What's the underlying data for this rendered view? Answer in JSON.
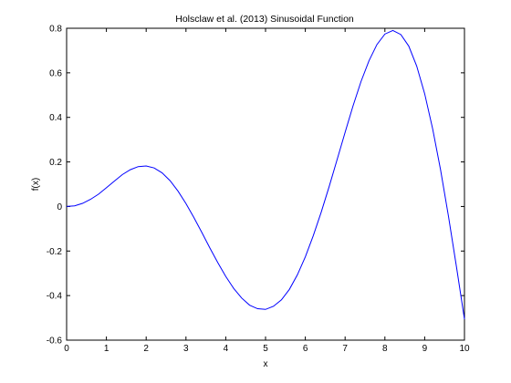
{
  "chart_data": {
    "type": "line",
    "title": "Holsclaw et al. (2013) Sinusoidal Function",
    "xlabel": "x",
    "ylabel": "f(x)",
    "xlim": [
      0,
      10
    ],
    "ylim": [
      -0.6,
      0.8
    ],
    "x_ticks": [
      "0",
      "1",
      "2",
      "3",
      "4",
      "5",
      "6",
      "7",
      "8",
      "9",
      "10"
    ],
    "y_ticks": [
      "-0.6",
      "-0.4",
      "-0.2",
      "0",
      "0.2",
      "0.4",
      "0.6",
      "0.8"
    ],
    "grid": false,
    "series": [
      {
        "color": "#0000ff",
        "x": [
          0,
          0.2,
          0.4,
          0.6,
          0.8,
          1.0,
          1.2,
          1.4,
          1.6,
          1.8,
          2.0,
          2.2,
          2.4,
          2.6,
          2.8,
          3.0,
          3.2,
          3.4,
          3.6,
          3.8,
          4.0,
          4.2,
          4.4,
          4.6,
          4.8,
          5.0,
          5.2,
          5.4,
          5.6,
          5.8,
          6.0,
          6.2,
          6.4,
          6.6,
          6.8,
          7.0,
          7.2,
          7.4,
          7.6,
          7.8,
          8.0,
          8.2,
          8.4,
          8.6,
          8.8,
          9.0,
          9.2,
          9.4,
          9.6,
          9.8,
          10.0
        ],
        "y": [
          0,
          0.003,
          0.014,
          0.032,
          0.055,
          0.084,
          0.114,
          0.143,
          0.165,
          0.179,
          0.182,
          0.173,
          0.151,
          0.116,
          0.069,
          0.013,
          -0.05,
          -0.117,
          -0.186,
          -0.252,
          -0.314,
          -0.368,
          -0.411,
          -0.443,
          -0.459,
          -0.462,
          -0.448,
          -0.419,
          -0.372,
          -0.307,
          -0.226,
          -0.131,
          -0.025,
          0.09,
          0.211,
          0.333,
          0.452,
          0.561,
          0.654,
          0.727,
          0.774,
          0.79,
          0.772,
          0.72,
          0.63,
          0.506,
          0.349,
          0.164,
          -0.046,
          -0.272,
          -0.506
        ]
      }
    ]
  }
}
